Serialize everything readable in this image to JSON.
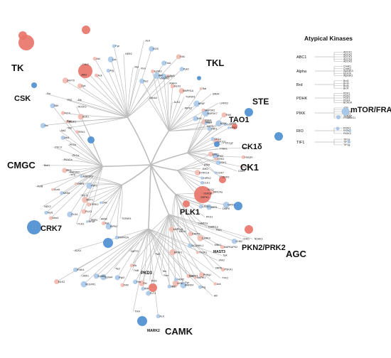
{
  "families": [
    {
      "label": "TK",
      "size": 13
    },
    {
      "label": "CSK",
      "size": 11
    },
    {
      "label": "TKL",
      "size": 13
    },
    {
      "label": "STE",
      "size": 12
    },
    {
      "label": "TAO1",
      "size": 11
    },
    {
      "label": "CK1δ",
      "size": 11
    },
    {
      "label": "CK1",
      "size": 13
    },
    {
      "label": "CMGC",
      "size": 13
    },
    {
      "label": "CRK7",
      "size": 11
    },
    {
      "label": "PLK1",
      "size": 11
    },
    {
      "label": "PKN2/PRK2",
      "size": 11
    },
    {
      "label": "AGC",
      "size": 13
    },
    {
      "label": "PKD3",
      "size": 6
    },
    {
      "label": "MAST3",
      "size": 5
    },
    {
      "label": "CAMK",
      "size": 13
    },
    {
      "label": "MARK2",
      "size": 5
    }
  ],
  "kinases": [
    "Src",
    "Yes",
    "PAK",
    "FLT4",
    "Fer",
    "Fes",
    "Etk",
    "ZAP70",
    "Syk",
    "JAK2",
    "TYK2",
    "Ack",
    "Abl",
    "Arg",
    "Lck",
    "Fyn",
    "HER2",
    "Met",
    "Ron",
    "ALK",
    "ROS",
    "IRR",
    "TrkA",
    "TrkB",
    "FAK",
    "Pyk2",
    "Tie2",
    "EphA4",
    "EphB3",
    "VEGFR1",
    "LIMK1",
    "IRAK4",
    "MLK3",
    "ALK4",
    "BMPR1A",
    "TGFbR1",
    "RIPK2",
    "Raf",
    "ARAF",
    "BRAF",
    "ZAK",
    "LRRK2",
    "MST1",
    "MST2",
    "YSK1",
    "OSR1",
    "MAP3K2",
    "MAP2K7",
    "PAK4",
    "NIK",
    "TNIK",
    "MINK",
    "GCK",
    "HPK1",
    "CK1a",
    "CK1g1",
    "CK1g2",
    "TTBK1",
    "VRK1",
    "VRK2",
    "Haspin",
    "CDK1",
    "CDK2",
    "CDK5",
    "CDK7",
    "CDK9",
    "ERK1",
    "ERK2",
    "p38a",
    "JNK1",
    "DYRK1A",
    "HIPK2",
    "CLK1",
    "CLK2",
    "GSK3B",
    "SRPK1",
    "PRP4",
    "PLK2",
    "PLK3",
    "PLK4",
    "Wee1",
    "Myt1",
    "NEK2",
    "NEK6",
    "AurA",
    "AurB",
    "TTK",
    "IRE1",
    "Bub1",
    "PKACa",
    "PKCa",
    "PKCd",
    "PKCe",
    "Akt1",
    "Akt2",
    "RSK1",
    "MSK1",
    "S6K",
    "SGK1",
    "ROCK1",
    "MRCKa",
    "GRK2",
    "DMPK",
    "NDR1",
    "LATS1",
    "PKG1",
    "CaMK1a",
    "CaMK2a",
    "CaMK4",
    "DAPK1",
    "DCAMKL1",
    "MELK",
    "AMPKa1",
    "BRSK1",
    "NUAK1",
    "CHK1",
    "CHK2",
    "PIM1",
    "MAPKAPK2",
    "MNK1",
    "PSKH1",
    "SNRK",
    "TSSK1",
    "PHKg1",
    "MARK1",
    "MARK3",
    "MARK4",
    "LKB1"
  ],
  "atypical": {
    "title": "Atypical Kinases",
    "families": [
      {
        "name": "ABC1",
        "members": [
          "ADCK1",
          "ADCK2",
          "ADCK3",
          "ADCK4",
          "ADCK5"
        ]
      },
      {
        "name": "Alpha",
        "members": [
          "ChaK1",
          "ChaK2",
          "AlphaK3",
          "EEF2K",
          "AlphaK1"
        ]
      },
      {
        "name": "Brd",
        "members": [
          "Brd2",
          "Brd3",
          "Brd4",
          "BrdT"
        ]
      },
      {
        "name": "PDHK",
        "members": [
          "PDK1",
          "PDK2",
          "PDK3",
          "PDK4",
          "BCKDK"
        ]
      },
      {
        "name": "PIKK",
        "members": [
          "ATR",
          "ATM",
          "DNAPK",
          "SMG1",
          "TRRAP",
          "FRAP"
        ],
        "callouts": [
          "mTOR/FRAP",
          "SMG1"
        ]
      },
      {
        "name": "RIO",
        "members": [
          "RIOK1",
          "RIOK2",
          "RIOK3"
        ]
      },
      {
        "name": "TIF1",
        "members": [
          "TIF1a",
          "TIF1b",
          "TIF1g"
        ]
      }
    ]
  },
  "colors": {
    "increased": "#e8756a",
    "decreased": "#4e8fd1",
    "branch": "#bdbdbd",
    "light_red": "#f2b9b0",
    "light_blue": "#a9c8e8"
  }
}
